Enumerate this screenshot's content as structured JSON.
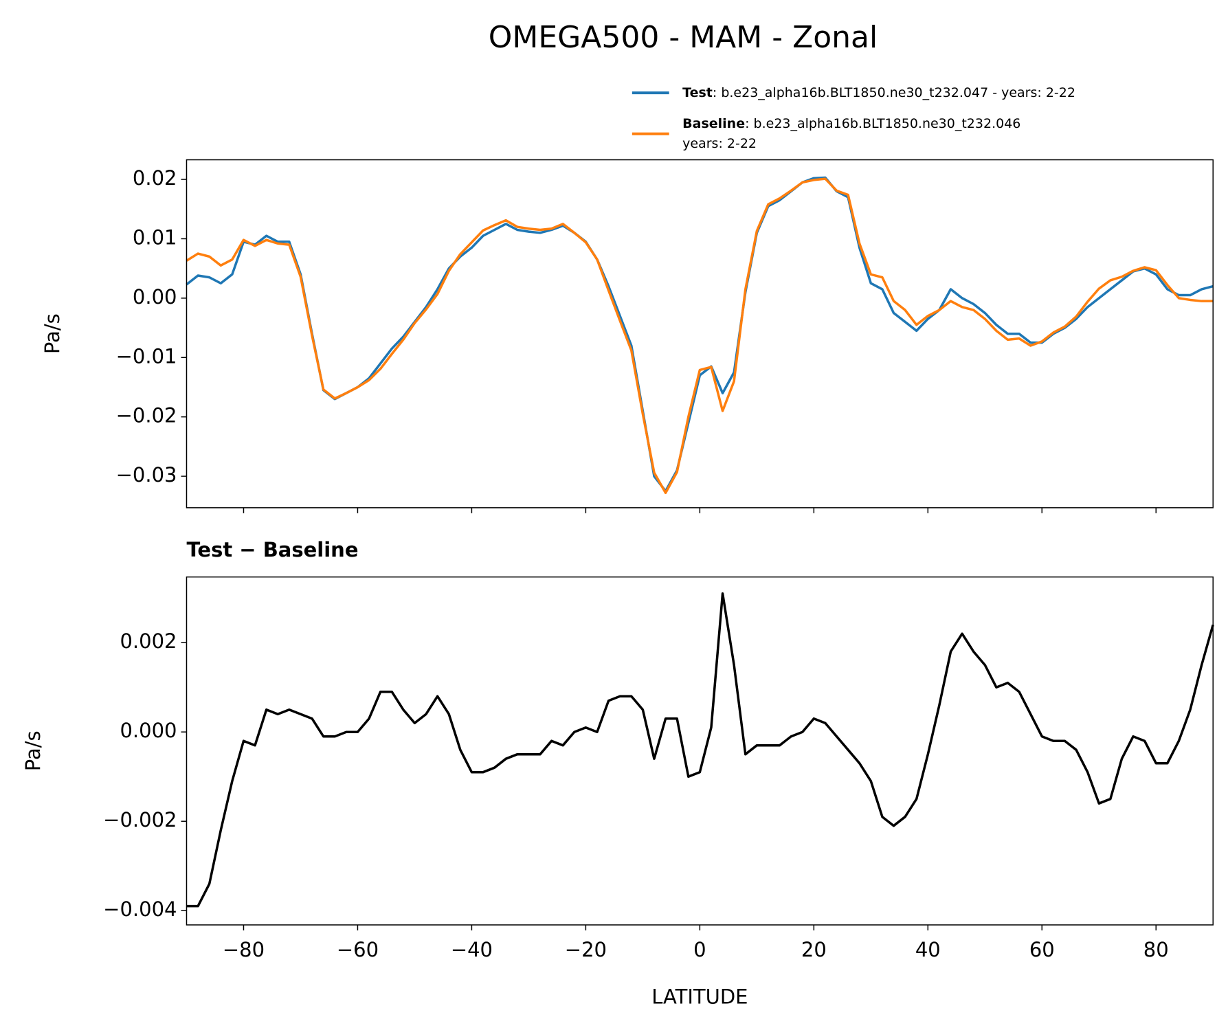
{
  "title": "OMEGA500 - MAM - Zonal",
  "chart_data": [
    {
      "type": "line",
      "ylabel": "Pa/s",
      "xtick_labels": false,
      "x": [
        -90,
        -88,
        -86,
        -84,
        -82,
        -80,
        -78,
        -76,
        -74,
        -72,
        -70,
        -68,
        -66,
        -64,
        -62,
        -60,
        -58,
        -56,
        -54,
        -52,
        -50,
        -48,
        -46,
        -44,
        -42,
        -40,
        -38,
        -36,
        -34,
        -32,
        -30,
        -28,
        -26,
        -24,
        -22,
        -20,
        -18,
        -16,
        -14,
        -12,
        -10,
        -8,
        -6,
        -4,
        -2,
        0,
        2,
        4,
        6,
        8,
        10,
        12,
        14,
        16,
        18,
        20,
        22,
        24,
        26,
        28,
        30,
        32,
        34,
        36,
        38,
        40,
        42,
        44,
        46,
        48,
        50,
        52,
        54,
        56,
        58,
        60,
        62,
        64,
        66,
        68,
        70,
        72,
        74,
        76,
        78,
        80,
        82,
        84,
        86,
        88,
        90
      ],
      "series": [
        {
          "name": "Test",
          "description": [
            ": b.e23_alpha16b.BLT1850.ne30_t232.047 - years: 2-22"
          ],
          "color": "#1f77b4",
          "values": [
            0.0023,
            0.0038,
            0.0035,
            0.0025,
            0.004,
            0.0095,
            0.009,
            0.0105,
            0.0095,
            0.0095,
            0.004,
            -0.006,
            -0.0155,
            -0.017,
            -0.016,
            -0.015,
            -0.0135,
            -0.011,
            -0.0085,
            -0.0065,
            -0.004,
            -0.0015,
            0.0015,
            0.005,
            0.007,
            0.0085,
            0.0105,
            0.0115,
            0.0125,
            0.0115,
            0.0112,
            0.011,
            0.0115,
            0.0122,
            0.011,
            0.0095,
            0.0065,
            0.002,
            -0.003,
            -0.008,
            -0.019,
            -0.03,
            -0.0325,
            -0.029,
            -0.021,
            -0.013,
            -0.0115,
            -0.016,
            -0.0125,
            0.001,
            0.011,
            0.0155,
            0.0165,
            0.018,
            0.0195,
            0.0202,
            0.0203,
            0.018,
            0.017,
            0.0085,
            0.0025,
            0.0015,
            -0.0025,
            -0.004,
            -0.0055,
            -0.0035,
            -0.002,
            0.0015,
            0.0,
            -0.001,
            -0.0025,
            -0.0045,
            -0.006,
            -0.006,
            -0.0075,
            -0.0075,
            -0.006,
            -0.005,
            -0.0035,
            -0.0015,
            0.0,
            0.0015,
            0.003,
            0.0045,
            0.005,
            0.004,
            0.0015,
            0.0005,
            0.0005,
            0.0015,
            0.002
          ]
        },
        {
          "name": "Baseline",
          "description": [
            ": b.e23_alpha16b.BLT1850.ne30_t232.046",
            "years: 2-22"
          ],
          "color": "#ff7f0e",
          "values": [
            0.0063,
            0.0075,
            0.007,
            0.0055,
            0.0065,
            0.0098,
            0.0088,
            0.0098,
            0.0092,
            0.009,
            0.0036,
            -0.0063,
            -0.0154,
            -0.0169,
            -0.016,
            -0.015,
            -0.0138,
            -0.0119,
            -0.0094,
            -0.007,
            -0.0042,
            -0.0019,
            0.0007,
            0.0046,
            0.0074,
            0.0094,
            0.0114,
            0.0123,
            0.0131,
            0.012,
            0.0117,
            0.0115,
            0.0117,
            0.0125,
            0.011,
            0.0094,
            0.0065,
            0.0013,
            -0.0038,
            -0.0088,
            -0.0195,
            -0.0294,
            -0.0328,
            -0.0293,
            -0.02,
            -0.0121,
            -0.0116,
            -0.019,
            -0.014,
            0.0015,
            0.0113,
            0.0158,
            0.0168,
            0.0181,
            0.0195,
            0.0199,
            0.0201,
            0.0181,
            0.0174,
            0.0092,
            0.004,
            0.0035,
            -0.0005,
            -0.002,
            -0.0045,
            -0.003,
            -0.002,
            -0.0005,
            -0.0015,
            -0.002,
            -0.0035,
            -0.0055,
            -0.007,
            -0.0068,
            -0.008,
            -0.0073,
            -0.0058,
            -0.0048,
            -0.0031,
            -0.0006,
            0.0016,
            0.003,
            0.0036,
            0.0046,
            0.0052,
            0.0047,
            0.0022,
            0.0,
            -0.0003,
            -0.0005,
            -0.0005
          ]
        }
      ],
      "xlim": [
        -90,
        90
      ],
      "xticks": [
        -80,
        -60,
        -40,
        -20,
        0,
        20,
        40,
        60,
        80
      ],
      "ylim": [
        -0.0353,
        0.0233
      ],
      "yticks": [
        {
          "value": -0.03,
          "label": "−0.03"
        },
        {
          "value": -0.02,
          "label": "−0.02"
        },
        {
          "value": -0.01,
          "label": "−0.01"
        },
        {
          "value": 0,
          "label": "0.00"
        },
        0.01,
        0.02
      ]
    },
    {
      "type": "line",
      "title": "Test − Baseline",
      "ylabel": "Pa/s",
      "xlabel": "LATITUDE",
      "x": [
        -90,
        -88,
        -86,
        -84,
        -82,
        -80,
        -78,
        -76,
        -74,
        -72,
        -70,
        -68,
        -66,
        -64,
        -62,
        -60,
        -58,
        -56,
        -54,
        -52,
        -50,
        -48,
        -46,
        -44,
        -42,
        -40,
        -38,
        -36,
        -34,
        -32,
        -30,
        -28,
        -26,
        -24,
        -22,
        -20,
        -18,
        -16,
        -14,
        -12,
        -10,
        -8,
        -6,
        -4,
        -2,
        0,
        2,
        4,
        6,
        8,
        10,
        12,
        14,
        16,
        18,
        20,
        22,
        24,
        26,
        28,
        30,
        32,
        34,
        36,
        38,
        40,
        42,
        44,
        46,
        48,
        50,
        52,
        54,
        56,
        58,
        60,
        62,
        64,
        66,
        68,
        70,
        72,
        74,
        76,
        78,
        80,
        82,
        84,
        86,
        88,
        90
      ],
      "series": [
        {
          "color": "#000000",
          "values": [
            -0.0039,
            -0.0039,
            -0.0034,
            -0.0022,
            -0.0011,
            -0.0002,
            -0.0003,
            0.0005,
            0.0004,
            0.0005,
            0.0004,
            0.0003,
            -0.0001,
            -0.0001,
            0.0,
            0.0,
            0.0003,
            0.0009,
            0.0009,
            0.0005,
            0.0002,
            0.0004,
            0.0008,
            0.0004,
            -0.0004,
            -0.0009,
            -0.0009,
            -0.0008,
            -0.0006,
            -0.0005,
            -0.0005,
            -0.0005,
            -0.0002,
            -0.0003,
            0.0,
            0.0001,
            0.0,
            0.0007,
            0.0008,
            0.0008,
            0.0005,
            -0.0006,
            0.0003,
            0.0003,
            -0.001,
            -0.0009,
            0.0001,
            0.0031,
            0.0015,
            -0.0005,
            -0.0003,
            -0.0003,
            -0.0003,
            -0.0001,
            0.0,
            0.0003,
            0.0002,
            -0.0001,
            -0.0004,
            -0.0007,
            -0.0011,
            -0.0019,
            -0.0021,
            -0.0019,
            -0.0015,
            -0.0005,
            0.0006,
            0.0018,
            0.0022,
            0.0018,
            0.0015,
            0.001,
            0.0011,
            0.0009,
            0.0004,
            -0.0001,
            -0.0002,
            -0.0002,
            -0.0004,
            -0.0009,
            -0.0016,
            -0.0015,
            -0.0006,
            -0.0001,
            -0.0002,
            -0.0007,
            -0.0007,
            -0.0002,
            0.0005,
            0.0015,
            0.0024
          ]
        }
      ],
      "xlim": [
        -90,
        90
      ],
      "xticks": [
        {
          "value": -80,
          "label": "−80"
        },
        {
          "value": -60,
          "label": "−60"
        },
        {
          "value": -40,
          "label": "−40"
        },
        {
          "value": -20,
          "label": "−20"
        },
        0,
        20,
        40,
        60,
        80
      ],
      "ylim": [
        -0.00432,
        0.00347
      ],
      "yticks": [
        {
          "value": -0.004,
          "label": "−0.004"
        },
        {
          "value": -0.002,
          "label": "−0.002"
        },
        {
          "value": 0,
          "label": "0.000"
        },
        0.002
      ]
    }
  ]
}
